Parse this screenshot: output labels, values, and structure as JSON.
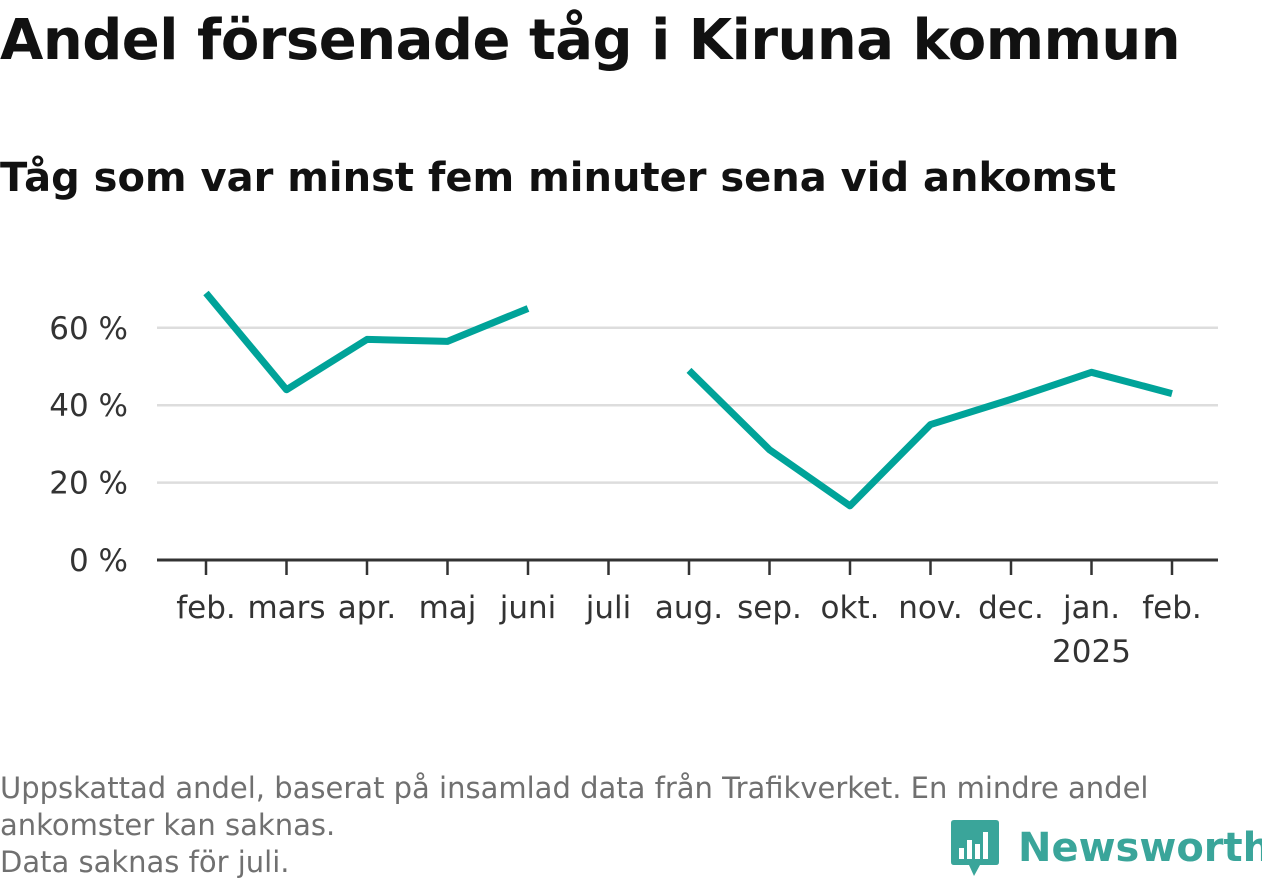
{
  "colors": {
    "line": "#00a399",
    "grid": "#dddddd",
    "axis": "#333333",
    "text": "#111111",
    "muted": "#707070",
    "brand": "#3aa59a"
  },
  "chart_data": {
    "type": "line",
    "title": "Andel försenade tåg i Kiruna kommun",
    "subtitle": "Tåg som var minst fem minuter sena vid ankomst",
    "xlabel": "",
    "ylabel": "",
    "ylim": [
      0,
      70
    ],
    "yticks": [
      "0 %",
      "20 %",
      "40 %",
      "60 %"
    ],
    "ytick_values": [
      0,
      20,
      40,
      60
    ],
    "grid": true,
    "categories": [
      "feb.",
      "mars",
      "apr.",
      "maj",
      "juni",
      "juli",
      "aug.",
      "sep.",
      "okt.",
      "nov.",
      "dec.",
      "jan.",
      "feb."
    ],
    "year_labels": {
      "11": "2025"
    },
    "series": [
      {
        "values": [
          69,
          44,
          57,
          56.5,
          65,
          null,
          49,
          28.5,
          14,
          35,
          41.5,
          48.5,
          43
        ]
      }
    ]
  },
  "footnote": {
    "line1": "Uppskattad andel, baserat på insamlad data från Trafikverket. En mindre andel",
    "line2": "ankomster kan saknas.",
    "line3": "Data saknas för juli."
  },
  "brand": {
    "name": "Newsworthy",
    "icon": "bar-chart-logo-icon"
  }
}
